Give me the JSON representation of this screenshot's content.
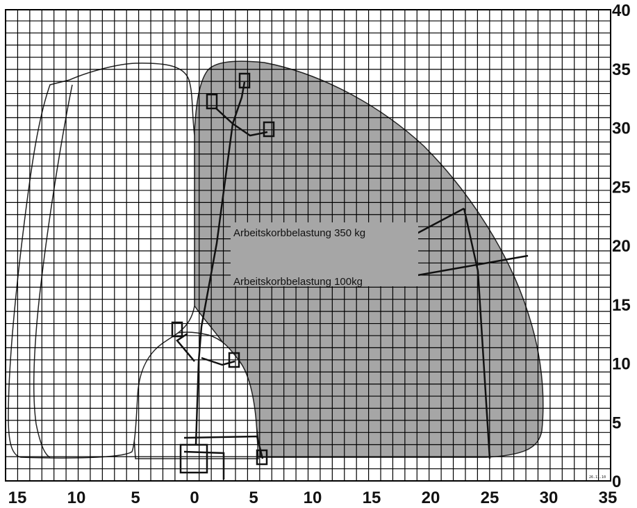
{
  "x_axis": {
    "tick_labels": [
      "15",
      "10",
      "5",
      "0",
      "5",
      "10",
      "15",
      "20",
      "25",
      "30",
      "35"
    ]
  },
  "y_axis": {
    "tick_labels": [
      "0",
      "5",
      "10",
      "15",
      "20",
      "25",
      "30",
      "35",
      "40"
    ]
  },
  "annotations": {
    "load_350": "Arbeitskorbbelastung 350 kg",
    "load_100": "Arbeitskorbbelastung 100kg"
  },
  "stamp": "26.11.10",
  "colors": {
    "working_area": "#a6a6a6",
    "grid": "#000000",
    "vehicle": "#ffffff",
    "label_box": "#a6a6a6"
  }
}
